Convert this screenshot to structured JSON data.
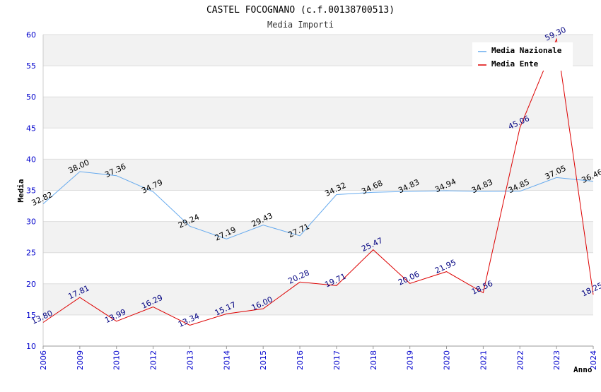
{
  "chart_data": {
    "type": "line",
    "title": "CASTEL FOCOGNANO (c.f.00138700513)",
    "subtitle": "Media Importi",
    "xlabel": "Anno",
    "ylabel": "Media",
    "ylim": [
      10,
      60
    ],
    "yticks": [
      "10",
      "15",
      "20",
      "25",
      "30",
      "35",
      "40",
      "45",
      "50",
      "55",
      "60"
    ],
    "categories": [
      "2006",
      "2009",
      "2010",
      "2012",
      "2013",
      "2014",
      "2015",
      "2016",
      "2017",
      "2018",
      "2019",
      "2020",
      "2021",
      "2022",
      "2023",
      "2024"
    ],
    "grid": true,
    "legend_position": "top-right",
    "series": [
      {
        "name": "Media Nazionale",
        "color": "#66aaee",
        "values": [
          32.82,
          38.0,
          37.36,
          34.79,
          29.24,
          27.19,
          29.43,
          27.71,
          34.32,
          34.68,
          34.83,
          34.94,
          34.83,
          34.85,
          37.05,
          36.46
        ],
        "labels": [
          "32.82",
          "38.00",
          "37.36",
          "34.79",
          "29.24",
          "27.19",
          "29.43",
          "27.71",
          "34.32",
          "34.68",
          "34.83",
          "34.94",
          "34.83",
          "34.85",
          "37.05",
          "36.46"
        ]
      },
      {
        "name": "Media Ente",
        "color": "#dd0000",
        "values": [
          13.8,
          17.81,
          13.99,
          16.29,
          13.34,
          15.17,
          16.0,
          20.28,
          19.71,
          25.47,
          20.06,
          21.95,
          18.56,
          45.06,
          59.3,
          18.25
        ],
        "labels": [
          "13.80",
          "17.81",
          "13.99",
          "16.29",
          "13.34",
          "15.17",
          "16.00",
          "20.28",
          "19.71",
          "25.47",
          "20.06",
          "21.95",
          "18.56",
          "45.06",
          "59.30",
          "18.25"
        ]
      }
    ]
  }
}
